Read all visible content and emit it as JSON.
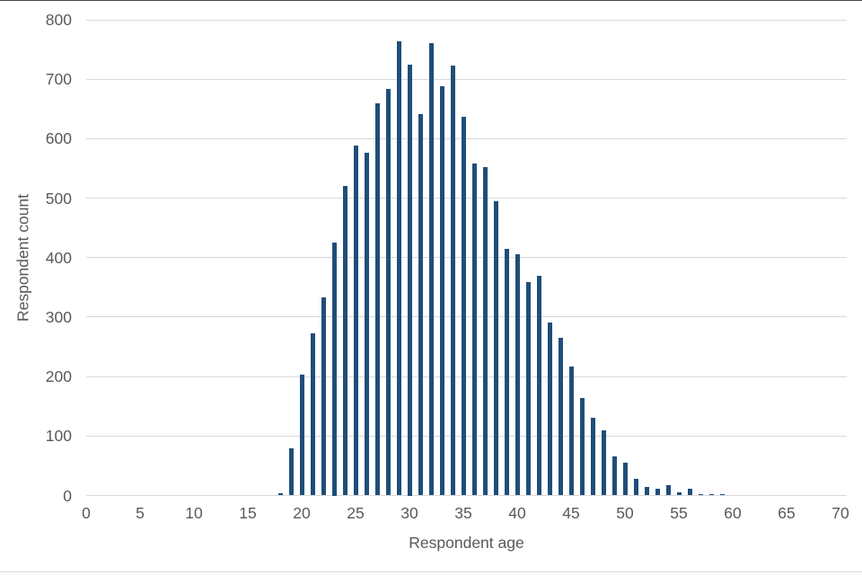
{
  "chart_data": {
    "type": "bar",
    "title": "",
    "xlabel": "Respondent age",
    "ylabel": "Respondent count",
    "xlim": [
      0,
      70
    ],
    "ylim": [
      0,
      800
    ],
    "x_ticks": [
      0,
      5,
      10,
      15,
      20,
      25,
      30,
      35,
      40,
      45,
      50,
      55,
      60,
      65,
      70
    ],
    "y_ticks": [
      0,
      100,
      200,
      300,
      400,
      500,
      600,
      700,
      800
    ],
    "grid": "horizontal gridlines on, vertical off",
    "legend_position": "none",
    "bar_color": "#1f4e79",
    "gridline_color": "#d9d9d9",
    "tick_label_color": "#595959",
    "axis_title_color": "#595959",
    "x": [
      18,
      19,
      20,
      21,
      22,
      23,
      24,
      25,
      26,
      27,
      28,
      29,
      30,
      31,
      32,
      33,
      34,
      35,
      36,
      37,
      38,
      39,
      40,
      41,
      42,
      43,
      44,
      45,
      46,
      47,
      48,
      49,
      50,
      51,
      52,
      53,
      54,
      55,
      56,
      57,
      58,
      59
    ],
    "values": [
      4,
      80,
      203,
      273,
      333,
      425,
      520,
      589,
      577,
      660,
      683,
      764,
      725,
      641,
      761,
      688,
      723,
      637,
      558,
      552,
      495,
      415,
      405,
      359,
      369,
      291,
      265,
      217,
      164,
      130,
      109,
      65,
      55,
      28,
      14,
      11,
      17,
      5,
      12,
      3,
      3,
      2
    ]
  }
}
